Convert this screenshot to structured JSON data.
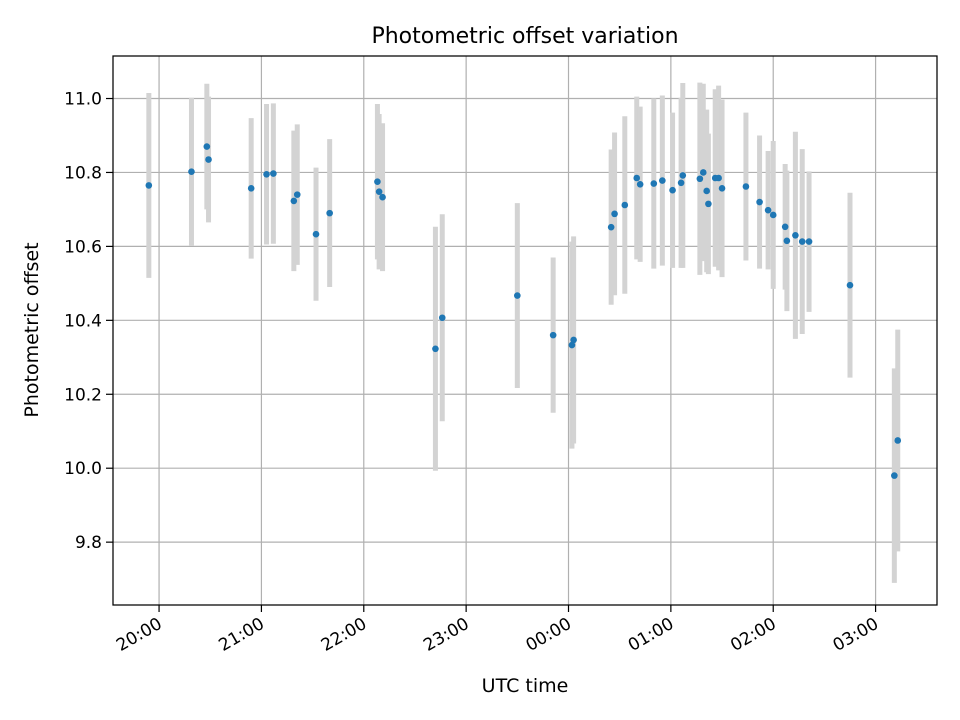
{
  "chart_data": {
    "type": "scatter",
    "title": "Photometric offset variation",
    "xlabel": "UTC time",
    "ylabel": "Photometric offset",
    "x_ticks": [
      "20:00",
      "21:00",
      "22:00",
      "23:00",
      "00:00",
      "01:00",
      "02:00",
      "03:00"
    ],
    "y_ticks": [
      "9.8",
      "10.0",
      "10.2",
      "10.4",
      "10.6",
      "10.8",
      "11.0"
    ],
    "xlim_hours": [
      19.55,
      27.6
    ],
    "ylim": [
      9.63,
      11.115
    ],
    "grid": true,
    "colors": {
      "point": "#1f77b4",
      "errorbar": "#d3d3d3",
      "grid": "#b0b0b0"
    },
    "series": [
      {
        "x": [
          "19:54",
          "20:19",
          "20:28",
          "20:29",
          "20:54",
          "21:03",
          "21:07",
          "21:19",
          "21:21",
          "21:32",
          "21:40",
          "22:08",
          "22:09",
          "22:11",
          "22:42",
          "22:46",
          "23:30",
          "23:51",
          "00:02",
          "00:03",
          "00:25",
          "00:27",
          "00:33",
          "00:40",
          "00:42",
          "00:50",
          "00:55",
          "01:01",
          "01:06",
          "01:07",
          "01:17",
          "01:19",
          "01:21",
          "01:22",
          "01:26",
          "01:28",
          "01:30",
          "01:44",
          "01:52",
          "01:57",
          "02:00",
          "02:07",
          "02:08",
          "02:13",
          "02:17",
          "02:21",
          "02:45",
          "03:11",
          "03:13"
        ],
        "y": [
          10.765,
          10.802,
          10.87,
          10.835,
          10.757,
          10.795,
          10.797,
          10.723,
          10.74,
          10.633,
          10.69,
          10.775,
          10.748,
          10.733,
          10.323,
          10.407,
          10.467,
          10.36,
          10.333,
          10.347,
          10.652,
          10.688,
          10.712,
          10.785,
          10.768,
          10.77,
          10.778,
          10.752,
          10.772,
          10.792,
          10.783,
          10.8,
          10.75,
          10.715,
          10.785,
          10.785,
          10.757,
          10.762,
          10.72,
          10.698,
          10.685,
          10.653,
          10.615,
          10.63,
          10.613,
          10.613,
          10.495,
          9.98,
          10.075
        ],
        "err": [
          0.25,
          0.2,
          0.17,
          0.17,
          0.19,
          0.19,
          0.19,
          0.19,
          0.19,
          0.18,
          0.2,
          0.21,
          0.21,
          0.2,
          0.33,
          0.28,
          0.25,
          0.21,
          0.28,
          0.28,
          0.21,
          0.22,
          0.24,
          0.22,
          0.21,
          0.23,
          0.23,
          0.21,
          0.23,
          0.25,
          0.26,
          0.24,
          0.22,
          0.19,
          0.24,
          0.25,
          0.24,
          0.2,
          0.18,
          0.16,
          0.2,
          0.17,
          0.19,
          0.28,
          0.25,
          0.19,
          0.25,
          0.29,
          0.3
        ]
      }
    ]
  }
}
